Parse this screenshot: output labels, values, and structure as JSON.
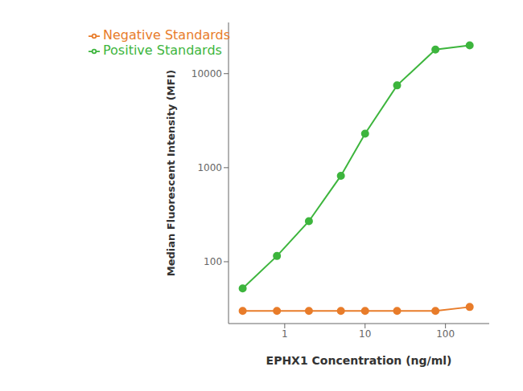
{
  "chart_data": {
    "type": "line",
    "x": [
      0.3,
      0.8,
      2.0,
      5.0,
      10.0,
      25.0,
      75.0,
      200.0
    ],
    "series": [
      {
        "name": "Positive Standards",
        "color": "#3db53d",
        "marker": "circle",
        "values": [
          52,
          115,
          270,
          820,
          2300,
          7500,
          18000,
          20000
        ]
      },
      {
        "name": "Negative Standards",
        "color": "#e87c2a",
        "marker": "circle",
        "values": [
          30,
          30,
          30,
          30,
          30,
          30,
          30,
          33
        ]
      }
    ],
    "x_label": "EPHX1 Concentration (ng/ml)",
    "y_label": "Median Fluorescent Intensity (MFI)",
    "xlim": [
      0.2,
      350
    ],
    "ylim": [
      22,
      35000
    ],
    "xticks": [
      1,
      10,
      100
    ],
    "yticks": [
      100,
      1000,
      10000
    ],
    "log": true,
    "legend": "upper left"
  }
}
